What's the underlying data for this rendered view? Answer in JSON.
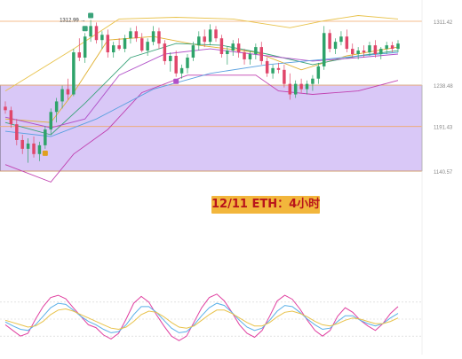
{
  "chart_data": {
    "type": "candlestick",
    "title": "12/11 ETH：4小时",
    "price_axis": {
      "min": 1140.57,
      "max": 1311.42
    },
    "levels": [
      {
        "value": 1311.42,
        "label": "1311.42",
        "color": "#f0a868"
      },
      {
        "value": 1238.48,
        "label": "1238.48",
        "color": "#f0a868"
      },
      {
        "value": 1191.43,
        "label": "1191.43",
        "color": "#f0a868"
      },
      {
        "value": 1140.57,
        "label": "1140.57",
        "color": "#f0a868"
      }
    ],
    "high_marker": {
      "value": 1312.99,
      "label": "1312.99"
    },
    "zone": {
      "from": 1238.48,
      "to": 1140.57,
      "color": "#d9c8f7"
    },
    "candles": [
      [
        1214,
        1220,
        1206,
        1210
      ],
      [
        1210,
        1214,
        1190,
        1194
      ],
      [
        1194,
        1200,
        1170,
        1176
      ],
      [
        1176,
        1182,
        1160,
        1166
      ],
      [
        1166,
        1178,
        1150,
        1172
      ],
      [
        1172,
        1180,
        1156,
        1160
      ],
      [
        1160,
        1174,
        1152,
        1170
      ],
      [
        1170,
        1192,
        1166,
        1188
      ],
      [
        1188,
        1212,
        1182,
        1208
      ],
      [
        1208,
        1224,
        1196,
        1220
      ],
      [
        1220,
        1238,
        1212,
        1234
      ],
      [
        1234,
        1246,
        1222,
        1228
      ],
      [
        1228,
        1280,
        1226,
        1276
      ],
      [
        1276,
        1292,
        1266,
        1270
      ],
      [
        1270,
        1298,
        1264,
        1294
      ],
      [
        1294,
        1312.99,
        1288,
        1306
      ],
      [
        1306,
        1310,
        1286,
        1290
      ],
      [
        1290,
        1300,
        1280,
        1296
      ],
      [
        1296,
        1302,
        1270,
        1276
      ],
      [
        1276,
        1288,
        1270,
        1284
      ],
      [
        1284,
        1292,
        1278,
        1280
      ],
      [
        1280,
        1296,
        1276,
        1292
      ],
      [
        1292,
        1304,
        1286,
        1300
      ],
      [
        1300,
        1306,
        1288,
        1292
      ],
      [
        1292,
        1298,
        1276,
        1278
      ],
      [
        1278,
        1292,
        1272,
        1288
      ],
      [
        1288,
        1306,
        1284,
        1300
      ],
      [
        1300,
        1304,
        1280,
        1286
      ],
      [
        1286,
        1290,
        1262,
        1266
      ],
      [
        1266,
        1276,
        1254,
        1272
      ],
      [
        1272,
        1278,
        1248,
        1252
      ],
      [
        1252,
        1262,
        1246,
        1258
      ],
      [
        1258,
        1274,
        1252,
        1270
      ],
      [
        1270,
        1288,
        1266,
        1284
      ],
      [
        1284,
        1300,
        1278,
        1294
      ],
      [
        1294,
        1302,
        1282,
        1288
      ],
      [
        1288,
        1308,
        1284,
        1302
      ],
      [
        1302,
        1306,
        1288,
        1292
      ],
      [
        1292,
        1296,
        1270,
        1274
      ],
      [
        1274,
        1282,
        1262,
        1278
      ],
      [
        1278,
        1290,
        1272,
        1286
      ],
      [
        1286,
        1292,
        1270,
        1276
      ],
      [
        1276,
        1280,
        1262,
        1268
      ],
      [
        1268,
        1278,
        1262,
        1274
      ],
      [
        1274,
        1286,
        1268,
        1282
      ],
      [
        1282,
        1288,
        1262,
        1266
      ],
      [
        1266,
        1270,
        1248,
        1252
      ],
      [
        1252,
        1262,
        1246,
        1258
      ],
      [
        1258,
        1264,
        1252,
        1256
      ],
      [
        1256,
        1262,
        1236,
        1240
      ],
      [
        1240,
        1252,
        1222,
        1228
      ],
      [
        1228,
        1244,
        1224,
        1240
      ],
      [
        1240,
        1246,
        1230,
        1234
      ],
      [
        1234,
        1244,
        1228,
        1240
      ],
      [
        1240,
        1250,
        1232,
        1246
      ],
      [
        1246,
        1264,
        1240,
        1260
      ],
      [
        1260,
        1306,
        1256,
        1298
      ],
      [
        1298,
        1302,
        1276,
        1280
      ],
      [
        1280,
        1292,
        1274,
        1288
      ],
      [
        1288,
        1300,
        1284,
        1294
      ],
      [
        1294,
        1302,
        1276,
        1280
      ],
      [
        1280,
        1286,
        1270,
        1274
      ],
      [
        1274,
        1282,
        1268,
        1278
      ],
      [
        1278,
        1284,
        1270,
        1276
      ],
      [
        1276,
        1288,
        1272,
        1284
      ],
      [
        1284,
        1290,
        1270,
        1274
      ],
      [
        1274,
        1282,
        1268,
        1280
      ],
      [
        1280,
        1288,
        1274,
        1284
      ],
      [
        1284,
        1288,
        1276,
        1280
      ],
      [
        1280,
        1290,
        1276,
        1286
      ]
    ],
    "bollinger": {
      "color": "#e8c24a",
      "upper": [
        [
          0,
          1232
        ],
        [
          12,
          1280
        ],
        [
          20,
          1314
        ],
        [
          30,
          1316
        ],
        [
          40,
          1314
        ],
        [
          50,
          1304
        ],
        [
          56,
          1312
        ],
        [
          62,
          1318
        ],
        [
          69,
          1314
        ]
      ],
      "lower": [
        [
          0,
          1148
        ],
        [
          8,
          1128
        ],
        [
          12,
          1160
        ],
        [
          18,
          1188
        ],
        [
          24,
          1230
        ],
        [
          32,
          1250
        ],
        [
          44,
          1250
        ],
        [
          48,
          1232
        ],
        [
          54,
          1228
        ],
        [
          62,
          1232
        ],
        [
          69,
          1244
        ]
      ]
    },
    "moving_averages": [
      {
        "color": "#e0b030",
        "points": [
          [
            0,
            1200
          ],
          [
            8,
            1196
          ],
          [
            12,
            1230
          ],
          [
            18,
            1290
          ],
          [
            26,
            1294
          ],
          [
            34,
            1284
          ],
          [
            44,
            1276
          ],
          [
            52,
            1256
          ],
          [
            60,
            1272
          ],
          [
            69,
            1282
          ]
        ]
      },
      {
        "color": "#3aa37a",
        "points": [
          [
            0,
            1196
          ],
          [
            8,
            1182
          ],
          [
            14,
            1218
          ],
          [
            22,
            1270
          ],
          [
            30,
            1286
          ],
          [
            38,
            1284
          ],
          [
            46,
            1274
          ],
          [
            54,
            1262
          ],
          [
            62,
            1272
          ],
          [
            69,
            1278
          ]
        ]
      },
      {
        "color": "#b050c8",
        "points": [
          [
            0,
            1202
          ],
          [
            8,
            1190
          ],
          [
            14,
            1200
          ],
          [
            20,
            1250
          ],
          [
            28,
            1274
          ],
          [
            36,
            1280
          ],
          [
            46,
            1272
          ],
          [
            54,
            1266
          ],
          [
            62,
            1270
          ],
          [
            69,
            1274
          ]
        ]
      },
      {
        "color": "#5aa0e0",
        "points": [
          [
            0,
            1186
          ],
          [
            8,
            1180
          ],
          [
            16,
            1200
          ],
          [
            26,
            1234
          ],
          [
            36,
            1252
          ],
          [
            46,
            1262
          ],
          [
            56,
            1268
          ],
          [
            69,
            1276
          ]
        ]
      }
    ],
    "signal_markers": [
      {
        "candle": 7,
        "kind": "B",
        "color": "#e0a020",
        "position": "below"
      },
      {
        "candle": 14,
        "kind": "S",
        "color": "#3aa37a",
        "position": "above"
      },
      {
        "candle": 15,
        "kind": "S",
        "color": "#3aa37a",
        "position": "above"
      },
      {
        "candle": 30,
        "kind": "S",
        "color": "#b050c8",
        "position": "below"
      }
    ],
    "oscillator": {
      "range": [
        0,
        100
      ],
      "reference_levels": [
        80,
        50,
        20
      ],
      "series": [
        {
          "color": "#e040a0",
          "values": [
            40,
            30,
            20,
            25,
            50,
            72,
            88,
            92,
            86,
            70,
            55,
            40,
            35,
            22,
            15,
            25,
            50,
            78,
            90,
            80,
            58,
            38,
            20,
            12,
            20,
            45,
            70,
            88,
            94,
            82,
            62,
            40,
            25,
            18,
            30,
            55,
            82,
            92,
            85,
            68,
            48,
            30,
            20,
            30,
            55,
            70,
            62,
            48,
            38,
            30,
            42,
            60,
            72
          ]
        },
        {
          "color": "#5ab0e8",
          "values": [
            45,
            38,
            32,
            30,
            40,
            55,
            70,
            78,
            76,
            66,
            55,
            46,
            40,
            32,
            26,
            28,
            40,
            58,
            72,
            72,
            62,
            48,
            34,
            26,
            28,
            40,
            56,
            70,
            78,
            74,
            62,
            48,
            36,
            30,
            34,
            48,
            64,
            74,
            72,
            62,
            50,
            40,
            32,
            34,
            46,
            56,
            56,
            48,
            42,
            38,
            42,
            52,
            60
          ]
        },
        {
          "color": "#e8c24a",
          "values": [
            48,
            44,
            40,
            36,
            38,
            46,
            58,
            66,
            68,
            64,
            58,
            52,
            46,
            40,
            34,
            32,
            36,
            46,
            58,
            64,
            62,
            54,
            44,
            36,
            34,
            38,
            48,
            58,
            66,
            66,
            60,
            52,
            44,
            38,
            38,
            44,
            54,
            62,
            64,
            60,
            54,
            46,
            40,
            38,
            42,
            48,
            52,
            50,
            46,
            42,
            42,
            46,
            52
          ]
        }
      ]
    }
  }
}
